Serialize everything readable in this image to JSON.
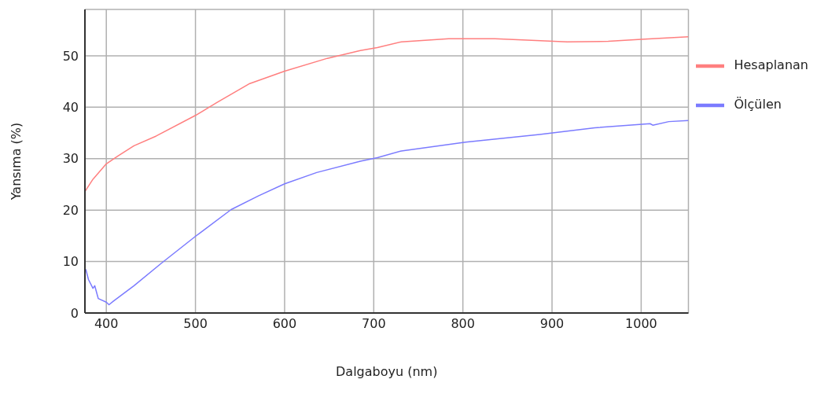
{
  "chart_data": {
    "type": "line",
    "xlabel": "Dalgaboyu (nm)",
    "ylabel": "Yansıma (%)",
    "xlim": [
      376,
      1053
    ],
    "ylim": [
      0,
      59
    ],
    "xticks": [
      400,
      500,
      600,
      700,
      800,
      900,
      1000
    ],
    "yticks": [
      0,
      10,
      20,
      30,
      40,
      50
    ],
    "grid": true,
    "legend": "right",
    "marker": "none",
    "line_style": "solid",
    "series": [
      {
        "name": "Hesaplanan",
        "color": "#ff7f7f",
        "x": [
          376,
          385,
          400,
          413,
          431,
          456,
          500,
          524,
          561,
          600,
          648,
          685,
          704,
          731,
          784,
          836,
          877,
          917,
          963,
          1000,
          1053
        ],
        "values": [
          23.6,
          26.0,
          29.0,
          30.5,
          32.5,
          34.4,
          38.4,
          40.9,
          44.6,
          47.0,
          49.5,
          51.0,
          51.6,
          52.7,
          53.3,
          53.3,
          53.0,
          52.7,
          52.8,
          53.2,
          53.7
        ]
      },
      {
        "name": "Ölçülen",
        "color": "#7b7bff",
        "x": [
          377,
          380,
          385,
          387,
          391,
          400,
          403,
          408,
          431,
          462,
          500,
          540,
          571,
          600,
          636,
          685,
          704,
          731,
          803,
          886,
          948,
          1010,
          1013,
          1031,
          1053
        ],
        "values": [
          8.5,
          6.5,
          4.8,
          5.3,
          2.8,
          2.1,
          1.6,
          2.3,
          5.3,
          9.7,
          14.9,
          20.1,
          22.8,
          25.1,
          27.3,
          29.5,
          30.2,
          31.5,
          33.2,
          34.7,
          36.0,
          36.8,
          36.5,
          37.2,
          37.4
        ]
      }
    ]
  }
}
